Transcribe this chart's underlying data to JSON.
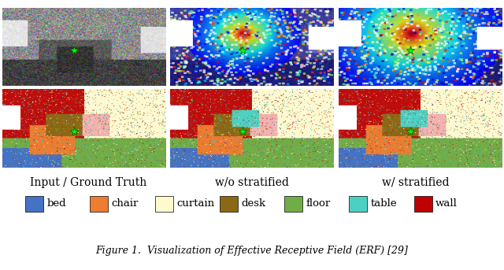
{
  "title": "Figure 1.  Visualization of Effective Receptive Field (ERF) [29]",
  "col_labels": [
    "Input / Ground Truth",
    "w/o stratified",
    "w/ stratified"
  ],
  "legend_items": [
    {
      "label": "bed",
      "color": "#4472C4"
    },
    {
      "label": "chair",
      "color": "#ED7D31"
    },
    {
      "label": "curtain",
      "color": "#FFFACD"
    },
    {
      "label": "desk",
      "color": "#8B6914"
    },
    {
      "label": "floor",
      "color": "#70AD47"
    },
    {
      "label": "table",
      "color": "#4DD0C4"
    },
    {
      "label": "wall",
      "color": "#C00000"
    }
  ],
  "bg_color": "#FFFFFF",
  "label_fontsize": 10,
  "legend_fontsize": 9.5,
  "title_fontsize": 9,
  "figure_width": 6.4,
  "figure_height": 3.43
}
